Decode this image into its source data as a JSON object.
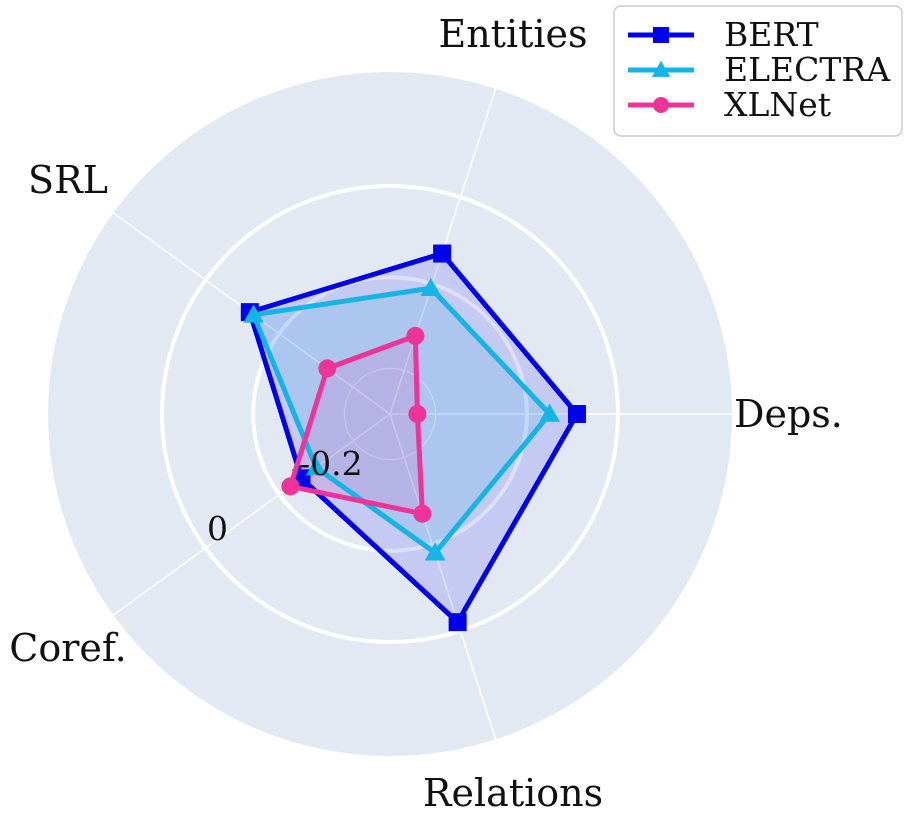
{
  "chart_data": {
    "type": "radar",
    "title": "",
    "axes": [
      "Deps.",
      "Entities",
      "SRL",
      "Coref.",
      "Relations"
    ],
    "radial_range": [
      -0.5,
      0.25
    ],
    "radial_ticks": [
      -0.2,
      0
    ],
    "radial_tick_labels": [
      "-0.2",
      "0"
    ],
    "grid": true,
    "legend_position": "top-right",
    "series": [
      {
        "name": "BERT",
        "marker": "square",
        "color": "#0000ee",
        "values": [
          -0.09,
          -0.13,
          -0.12,
          -0.26,
          -0.02
        ]
      },
      {
        "name": "ELECTRA",
        "marker": "triangle",
        "color": "#14b4e6",
        "values": [
          -0.15,
          -0.21,
          -0.13,
          -0.3,
          -0.18
        ]
      },
      {
        "name": "XLNet",
        "marker": "circle",
        "color": "#ee3399",
        "values": [
          -0.44,
          -0.32,
          -0.33,
          -0.23,
          -0.27
        ]
      }
    ]
  }
}
